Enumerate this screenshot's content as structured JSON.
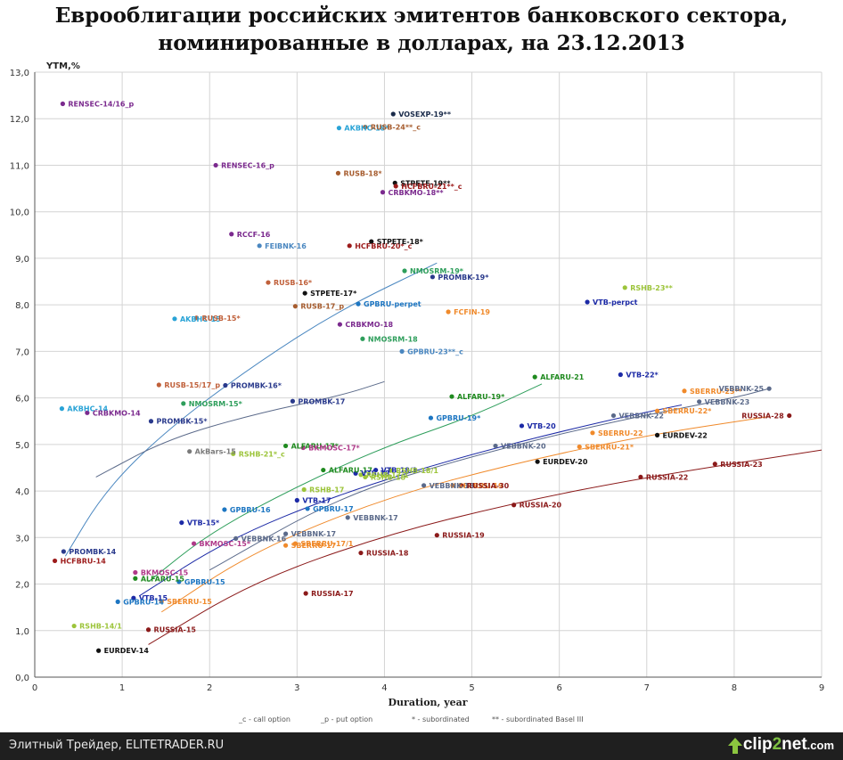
{
  "title_line1": "Еврооблигации российских эмитентов банковского сектора,",
  "title_line2": "номинированные в долларах, на 23.12.2013",
  "footer": {
    "left_text": "Элитный Трейдер, ELITETRADER.RU",
    "logo_text": "clip",
    "logo_num": "2",
    "logo_tail": "net",
    "logo_dom": ".com"
  },
  "chart_data": {
    "type": "scatter",
    "title": "Еврооблигации российских эмитентов банковского сектора, номинированные в долларах, на 23.12.2013",
    "xlabel": "Duration, year",
    "ylabel": "YTM,%",
    "xlim": [
      0,
      9
    ],
    "ylim": [
      0,
      13
    ],
    "xticks": [
      "0",
      "1",
      "2",
      "3",
      "4",
      "5",
      "6",
      "7",
      "8",
      "9"
    ],
    "yticks": [
      "0,0",
      "1,0",
      "2,0",
      "3,0",
      "4,0",
      "5,0",
      "6,0",
      "7,0",
      "8,0",
      "9,0",
      "10,0",
      "11,0",
      "12,0",
      "13,0"
    ],
    "grid": true,
    "legend_notes": [
      "_c - call option",
      "_p - put option",
      "* - subordinated",
      "** - subordinated Basel III"
    ],
    "points": [
      {
        "x": 0.32,
        "y": 12.32,
        "label": "RENSEC-14/16_p",
        "color": "#7b2a8e"
      },
      {
        "x": 2.07,
        "y": 11.0,
        "label": "RENSEC-16_p",
        "color": "#7b2a8e"
      },
      {
        "x": 4.1,
        "y": 12.1,
        "label": "VOSEXP-19**",
        "color": "#1a2b4a"
      },
      {
        "x": 3.48,
        "y": 11.8,
        "label": "AKBHC-18*",
        "color": "#29a3d6"
      },
      {
        "x": 3.78,
        "y": 11.82,
        "label": "RUSB-24**_c",
        "color": "#a65c2e"
      },
      {
        "x": 3.47,
        "y": 10.83,
        "label": "RUSB-18*",
        "color": "#a65c2e"
      },
      {
        "x": 4.12,
        "y": 10.62,
        "label": "STPETE-19**",
        "color": "#111111"
      },
      {
        "x": 4.13,
        "y": 10.55,
        "label": "HCFBRU-21**_c",
        "color": "#9c1b1b"
      },
      {
        "x": 3.98,
        "y": 10.42,
        "label": "CRBKMO-18**",
        "color": "#7b2a8e"
      },
      {
        "x": 2.25,
        "y": 9.52,
        "label": "RCCF-16",
        "color": "#7b2a8e"
      },
      {
        "x": 2.57,
        "y": 9.27,
        "label": "FEIBNK-16",
        "color": "#4a87c0"
      },
      {
        "x": 3.6,
        "y": 9.27,
        "label": "HCFBRU-20*_c",
        "color": "#9c1b1b"
      },
      {
        "x": 3.85,
        "y": 9.36,
        "label": "STPETE-18*",
        "color": "#111111"
      },
      {
        "x": 4.23,
        "y": 8.73,
        "label": "NMOSRM-19*",
        "color": "#2e9e5b"
      },
      {
        "x": 4.55,
        "y": 8.6,
        "label": "PROMBK-19*",
        "color": "#2a3a8c"
      },
      {
        "x": 2.67,
        "y": 8.48,
        "label": "RUSB-16*",
        "color": "#c0603a"
      },
      {
        "x": 3.09,
        "y": 8.25,
        "label": "STPETE-17*",
        "color": "#111111"
      },
      {
        "x": 2.98,
        "y": 7.97,
        "label": "RUSB-17_p",
        "color": "#a65c2e"
      },
      {
        "x": 3.7,
        "y": 8.02,
        "label": "GPBRU-perpet",
        "color": "#1d76c2"
      },
      {
        "x": 6.32,
        "y": 8.06,
        "label": "VTB-perpct",
        "color": "#1c2aa6"
      },
      {
        "x": 6.75,
        "y": 8.37,
        "label": "RSHB-23**",
        "color": "#9cc43a"
      },
      {
        "x": 4.73,
        "y": 7.85,
        "label": "FCFIN-19",
        "color": "#f08a2b"
      },
      {
        "x": 1.6,
        "y": 7.7,
        "label": "AKBHC-15",
        "color": "#29a3d6"
      },
      {
        "x": 1.85,
        "y": 7.72,
        "label": "RUSB-15*",
        "color": "#c0603a"
      },
      {
        "x": 3.49,
        "y": 7.58,
        "label": "CRBKMO-18",
        "color": "#7b2a8e"
      },
      {
        "x": 3.75,
        "y": 7.27,
        "label": "NMOSRM-18",
        "color": "#2e9e5b"
      },
      {
        "x": 4.2,
        "y": 7.0,
        "label": "GPBRU-23**_c",
        "color": "#4a87c0"
      },
      {
        "x": 1.42,
        "y": 6.28,
        "label": "RUSB-15/17_p",
        "color": "#c0603a"
      },
      {
        "x": 2.18,
        "y": 6.27,
        "label": "PROMBK-16*",
        "color": "#2a3a8c"
      },
      {
        "x": 2.95,
        "y": 5.93,
        "label": "PROMBK-17",
        "color": "#2a3a8c"
      },
      {
        "x": 0.31,
        "y": 5.77,
        "label": "AKBHC-14",
        "color": "#29a3d6"
      },
      {
        "x": 0.6,
        "y": 5.68,
        "label": "CRBKMO-14",
        "color": "#7b2a8e"
      },
      {
        "x": 1.33,
        "y": 5.5,
        "label": "PROMBK-15*",
        "color": "#2a3a8c"
      },
      {
        "x": 1.7,
        "y": 5.88,
        "label": "NMOSRM-15*",
        "color": "#2e9e5b"
      },
      {
        "x": 4.77,
        "y": 6.03,
        "label": "ALFARU-19*",
        "color": "#1f8a1f"
      },
      {
        "x": 5.72,
        "y": 6.45,
        "label": "ALFARU-21",
        "color": "#1f8a1f"
      },
      {
        "x": 6.7,
        "y": 6.5,
        "label": "VTB-22*",
        "color": "#1c2aa6"
      },
      {
        "x": 7.43,
        "y": 6.15,
        "label": "SBERRU-23**",
        "color": "#f08a2b"
      },
      {
        "x": 8.4,
        "y": 6.2,
        "label": "VEBBNK-25",
        "color": "#5b6a8a"
      },
      {
        "x": 7.6,
        "y": 5.92,
        "label": "VEBBNK-23",
        "color": "#5b6a8a"
      },
      {
        "x": 4.53,
        "y": 5.57,
        "label": "GPBRU-19*",
        "color": "#1d76c2"
      },
      {
        "x": 6.62,
        "y": 5.62,
        "label": "VEBBNK-22",
        "color": "#5b6a8a"
      },
      {
        "x": 7.12,
        "y": 5.72,
        "label": "SBERRU-22*",
        "color": "#f08a2b"
      },
      {
        "x": 8.63,
        "y": 5.62,
        "label": "RUSSIA-28",
        "color": "#8b1a1a"
      },
      {
        "x": 5.57,
        "y": 5.4,
        "label": "VTB-20",
        "color": "#1c2aa6"
      },
      {
        "x": 6.38,
        "y": 5.25,
        "label": "SBERRU-22",
        "color": "#f08a2b"
      },
      {
        "x": 7.12,
        "y": 5.2,
        "label": "EURDEV-22",
        "color": "#111111"
      },
      {
        "x": 6.23,
        "y": 4.95,
        "label": "SBERRU-21*",
        "color": "#f08a2b"
      },
      {
        "x": 5.27,
        "y": 4.97,
        "label": "VEBBNK-20",
        "color": "#5b6a8a"
      },
      {
        "x": 2.27,
        "y": 4.8,
        "label": "RSHB-21*_c",
        "color": "#9cc43a"
      },
      {
        "x": 1.77,
        "y": 4.85,
        "label": "AkBars-15",
        "color": "#7a7a7a"
      },
      {
        "x": 2.87,
        "y": 4.97,
        "label": "ALFARU-17*",
        "color": "#1f8a1f"
      },
      {
        "x": 3.07,
        "y": 4.93,
        "label": "BKMOSC-17*",
        "color": "#b03a8a"
      },
      {
        "x": 5.75,
        "y": 4.63,
        "label": "EURDEV-20",
        "color": "#111111"
      },
      {
        "x": 3.3,
        "y": 4.45,
        "label": "ALFARU-17",
        "color": "#1f8a1f"
      },
      {
        "x": 3.67,
        "y": 4.38,
        "label": "VTB-18",
        "color": "#1c2aa6"
      },
      {
        "x": 3.9,
        "y": 4.45,
        "label": "VTB-18/1",
        "color": "#1c2aa6"
      },
      {
        "x": 4.07,
        "y": 4.44,
        "label": "RSHB-18/1",
        "color": "#9cc43a"
      },
      {
        "x": 3.73,
        "y": 4.35,
        "label": "RSHB-17/1",
        "color": "#9cc43a"
      },
      {
        "x": 3.78,
        "y": 4.3,
        "label": "RSHB-18",
        "color": "#9cc43a"
      },
      {
        "x": 4.78,
        "y": 4.12,
        "label": "SBERRU-19",
        "color": "#f08a2b"
      },
      {
        "x": 4.45,
        "y": 4.12,
        "label": "VEBBNK-18",
        "color": "#5b6a8a"
      },
      {
        "x": 4.88,
        "y": 4.12,
        "label": "RUSSIA-30",
        "color": "#8b1a1a"
      },
      {
        "x": 3.08,
        "y": 4.03,
        "label": "RSHB-17",
        "color": "#9cc43a"
      },
      {
        "x": 3.0,
        "y": 3.8,
        "label": "VTB-17",
        "color": "#1c2aa6"
      },
      {
        "x": 3.12,
        "y": 3.62,
        "label": "GPBRU-17",
        "color": "#1d76c2"
      },
      {
        "x": 2.17,
        "y": 3.6,
        "label": "GPBRU-16",
        "color": "#1d76c2"
      },
      {
        "x": 3.58,
        "y": 3.43,
        "label": "VEBBNK-17",
        "color": "#5b6a8a"
      },
      {
        "x": 5.48,
        "y": 3.7,
        "label": "RUSSIA-20",
        "color": "#8b1a1a"
      },
      {
        "x": 6.93,
        "y": 4.3,
        "label": "RUSSIA-22",
        "color": "#8b1a1a"
      },
      {
        "x": 7.78,
        "y": 4.58,
        "label": "RUSSIA-23",
        "color": "#8b1a1a"
      },
      {
        "x": 1.68,
        "y": 3.32,
        "label": "VTB-15*",
        "color": "#1c2aa6"
      },
      {
        "x": 2.87,
        "y": 3.08,
        "label": "VEBBNK-17",
        "color": "#5b6a8a"
      },
      {
        "x": 4.6,
        "y": 3.05,
        "label": "RUSSIA-19",
        "color": "#8b1a1a"
      },
      {
        "x": 1.82,
        "y": 2.87,
        "label": "BKMOSC-15*",
        "color": "#b03a8a"
      },
      {
        "x": 2.3,
        "y": 2.98,
        "label": "VEBBNK-16",
        "color": "#5b6a8a"
      },
      {
        "x": 2.98,
        "y": 2.87,
        "label": "SBERRU-17/1",
        "color": "#f08a2b"
      },
      {
        "x": 2.87,
        "y": 2.83,
        "label": "SBERRU-17",
        "color": "#f08a2b"
      },
      {
        "x": 3.73,
        "y": 2.67,
        "label": "RUSSIA-18",
        "color": "#8b1a1a"
      },
      {
        "x": 0.33,
        "y": 2.7,
        "label": "PROMBK-14",
        "color": "#2a3a8c"
      },
      {
        "x": 0.23,
        "y": 2.5,
        "label": "HCFBRU-14",
        "color": "#9c1b1b"
      },
      {
        "x": 1.15,
        "y": 2.25,
        "label": "BKMOSC-15",
        "color": "#b03a8a"
      },
      {
        "x": 1.15,
        "y": 2.12,
        "label": "ALFARU-15",
        "color": "#1f8a1f"
      },
      {
        "x": 1.65,
        "y": 2.05,
        "label": "GPBRU-15",
        "color": "#1d76c2"
      },
      {
        "x": 1.13,
        "y": 1.7,
        "label": "VTB-15",
        "color": "#1c2aa6"
      },
      {
        "x": 0.95,
        "y": 1.62,
        "label": "GPBRU-14",
        "color": "#1d76c2"
      },
      {
        "x": 1.45,
        "y": 1.63,
        "label": "SBERRU-15",
        "color": "#f08a2b"
      },
      {
        "x": 3.1,
        "y": 1.8,
        "label": "RUSSIA-17",
        "color": "#8b1a1a"
      },
      {
        "x": 0.45,
        "y": 1.1,
        "label": "RSHB-14/1",
        "color": "#9cc43a"
      },
      {
        "x": 1.3,
        "y": 1.02,
        "label": "RUSSIA-15",
        "color": "#8b1a1a"
      },
      {
        "x": 0.73,
        "y": 0.57,
        "label": "EURDEV-14",
        "color": "#111111"
      }
    ],
    "trendlines": [
      {
        "color": "#4a87c0",
        "points": [
          [
            0.35,
            2.6
          ],
          [
            0.8,
            4.0
          ],
          [
            1.5,
            5.3
          ],
          [
            2.5,
            6.7
          ],
          [
            3.5,
            7.9
          ],
          [
            4.6,
            8.9
          ]
        ]
      },
      {
        "color": "#5b6a8a",
        "points": [
          [
            0.7,
            4.3
          ],
          [
            1.5,
            5.1
          ],
          [
            2.5,
            5.65
          ],
          [
            3.5,
            6.05
          ],
          [
            4.0,
            6.35
          ]
        ]
      },
      {
        "color": "#2e9e5b",
        "points": [
          [
            1.3,
            2.05
          ],
          [
            2.0,
            3.1
          ],
          [
            3.0,
            4.1
          ],
          [
            4.0,
            4.95
          ],
          [
            5.0,
            5.6
          ],
          [
            5.8,
            6.3
          ]
        ]
      },
      {
        "color": "#1c2aa6",
        "points": [
          [
            1.2,
            1.75
          ],
          [
            2.2,
            2.95
          ],
          [
            3.5,
            3.95
          ],
          [
            5.0,
            4.8
          ],
          [
            6.5,
            5.5
          ],
          [
            7.4,
            5.85
          ]
        ]
      },
      {
        "color": "#5b6a8a",
        "points": [
          [
            2.0,
            2.3
          ],
          [
            3.5,
            3.9
          ],
          [
            5.0,
            4.75
          ],
          [
            6.5,
            5.45
          ],
          [
            8.0,
            6.0
          ],
          [
            8.4,
            6.2
          ]
        ]
      },
      {
        "color": "#f08a2b",
        "points": [
          [
            1.45,
            1.4
          ],
          [
            2.5,
            2.7
          ],
          [
            4.0,
            3.85
          ],
          [
            5.5,
            4.6
          ],
          [
            7.0,
            5.2
          ],
          [
            8.4,
            5.6
          ]
        ]
      },
      {
        "color": "#8b1a1a",
        "points": [
          [
            1.3,
            0.7
          ],
          [
            2.5,
            2.05
          ],
          [
            4.0,
            3.05
          ],
          [
            5.5,
            3.75
          ],
          [
            7.0,
            4.3
          ],
          [
            9.0,
            4.88
          ]
        ]
      }
    ]
  }
}
